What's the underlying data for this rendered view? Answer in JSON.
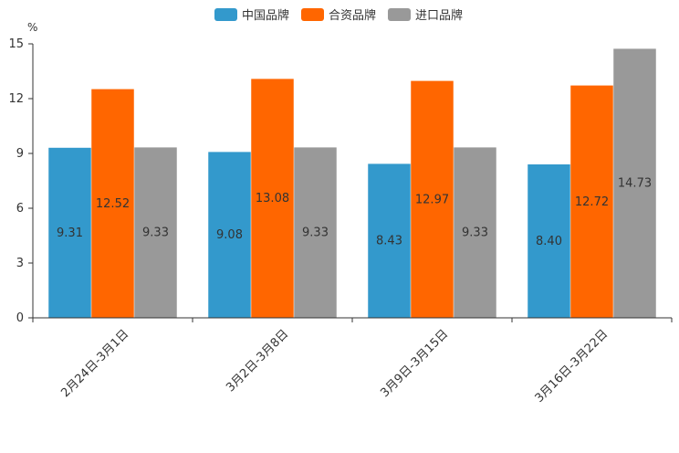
{
  "chart_data": {
    "type": "bar",
    "unit": "%",
    "categories": [
      "2月24日-3月1日",
      "3月2日-3月8日",
      "3月9日-3月15日",
      "3月16日-3月22日"
    ],
    "series": [
      {
        "name": "中国品牌",
        "color": "#3399CC",
        "values": [
          9.31,
          9.08,
          8.43,
          8.4
        ],
        "labels": [
          "9.31",
          "9.08",
          "8.43",
          "8.40"
        ]
      },
      {
        "name": "合资品牌",
        "color": "#FF6600",
        "values": [
          12.52,
          13.08,
          12.97,
          12.72
        ],
        "labels": [
          "12.52",
          "13.08",
          "12.97",
          "12.72"
        ]
      },
      {
        "name": "进口品牌",
        "color": "#999999",
        "values": [
          9.33,
          9.33,
          9.33,
          14.73
        ],
        "labels": [
          "9.33",
          "9.33",
          "9.33",
          "14.73"
        ]
      }
    ],
    "ylim": [
      0,
      15
    ],
    "yticks": [
      0,
      3,
      6,
      9,
      12,
      15
    ],
    "grid": false,
    "legend": "top-center"
  }
}
